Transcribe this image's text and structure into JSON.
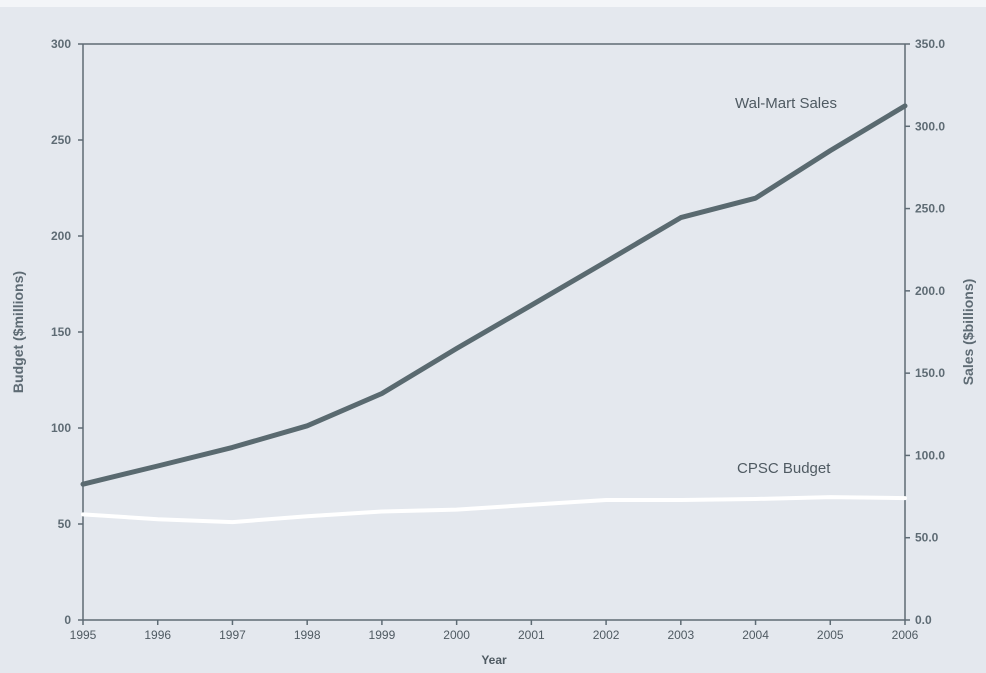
{
  "chart_data": {
    "type": "line",
    "title": "",
    "xlabel": "Year",
    "ylabel_left": "Budget ($millions)",
    "ylabel_right": "Sales ($billions)",
    "x": [
      1995,
      1996,
      1997,
      1998,
      1999,
      2000,
      2001,
      2002,
      2003,
      2004,
      2005,
      2006
    ],
    "ylim_left": [
      0,
      300
    ],
    "ylim_right": [
      0,
      350
    ],
    "yticks_left": [
      "0",
      "50",
      "100",
      "150",
      "200",
      "250",
      "300"
    ],
    "yticks_right": [
      "0.0",
      "50.0",
      "100.0",
      "150.0",
      "200.0",
      "250.0",
      "300.0",
      "350.0"
    ],
    "grid": false,
    "series": [
      {
        "name": "Wal-Mart Sales",
        "axis": "right",
        "color": "#5a6a70",
        "values": [
          82.5,
          93.6,
          104.9,
          118.0,
          137.6,
          165.0,
          191.3,
          217.8,
          244.5,
          256.3,
          285.2,
          312.4
        ]
      },
      {
        "name": "CPSC Budget",
        "axis": "left",
        "color": "#ffffff",
        "values": [
          55,
          52.5,
          51,
          54,
          56.5,
          57.5,
          60,
          62.5,
          62.5,
          63,
          64,
          63.5
        ]
      }
    ]
  }
}
